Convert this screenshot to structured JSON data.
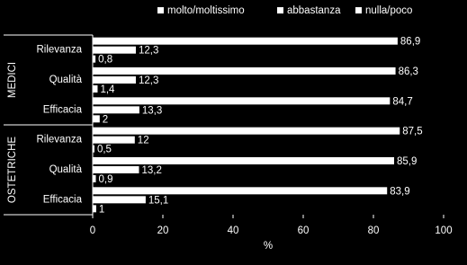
{
  "chart_data": {
    "type": "hbar",
    "categories": [
      "Rilevanza",
      "Qualità",
      "Efficacia",
      "Rilevanza",
      "Qualità",
      "Efficacia"
    ],
    "category_groups": [
      "MEDICI",
      "OSTETRICHE"
    ],
    "series": [
      {
        "name": "molto/moltissimo",
        "color": "#ffffff",
        "values": [
          86.9,
          86.3,
          84.7,
          87.5,
          85.9,
          83.9
        ],
        "value_labels": [
          "86,9",
          "86,3",
          "84,7",
          "87,5",
          "85,9",
          "83,9"
        ]
      },
      {
        "name": "abbastanza",
        "color": "#ffffff",
        "values": [
          12.3,
          12.3,
          13.3,
          12,
          13.2,
          15.1
        ],
        "value_labels": [
          "12,3",
          "12,3",
          "13,3",
          "12",
          "13,2",
          "15,1"
        ]
      },
      {
        "name": "nulla/poco",
        "color": "#ffffff",
        "values": [
          0.8,
          1.4,
          2,
          0.5,
          0.9,
          1
        ],
        "value_labels": [
          "0,8",
          "1,4",
          "2",
          "0,5",
          "0,9",
          "1"
        ]
      }
    ],
    "xlabel": "%",
    "xlim": [
      0,
      100
    ],
    "xticks": [
      0,
      20,
      40,
      60,
      80,
      100
    ]
  }
}
